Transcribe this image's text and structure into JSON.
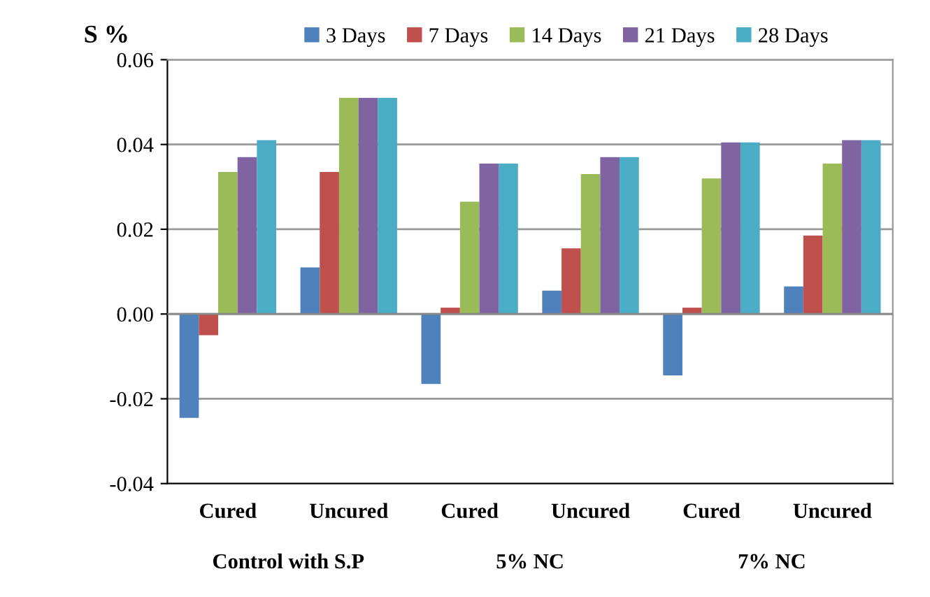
{
  "chart_data": {
    "type": "bar",
    "ylabel": "S %",
    "categories": [
      "Cured",
      "Uncured",
      "Cured",
      "Uncured",
      "Cured",
      "Uncured"
    ],
    "series": [
      {
        "name": "3 Days",
        "color": "#4f81bd",
        "values": [
          -0.0245,
          0.011,
          -0.0165,
          0.0055,
          -0.0145,
          0.0065
        ]
      },
      {
        "name": "7 Days",
        "color": "#c0504d",
        "values": [
          -0.005,
          0.0335,
          0.0015,
          0.0155,
          0.0015,
          0.0185
        ]
      },
      {
        "name": "14 Days",
        "color": "#9bbb59",
        "values": [
          0.0335,
          0.051,
          0.0265,
          0.033,
          0.032,
          0.0355
        ]
      },
      {
        "name": "21 Days",
        "color": "#8064a2",
        "values": [
          0.037,
          0.051,
          0.0355,
          0.037,
          0.0405,
          0.041
        ]
      },
      {
        "name": "28 Days",
        "color": "#4bacc6",
        "values": [
          0.041,
          0.051,
          0.0355,
          0.037,
          0.0405,
          0.041
        ]
      }
    ],
    "ylim": [
      -0.04,
      0.06
    ],
    "yticks": [
      {
        "value": -0.04,
        "label": "-0.04"
      },
      {
        "value": -0.02,
        "label": "-0.02"
      },
      {
        "value": 0,
        "label": "0.00"
      },
      {
        "value": 0.02,
        "label": "0.02"
      },
      {
        "value": 0.04,
        "label": "0.04"
      },
      {
        "value": 0.06,
        "label": "0.06"
      }
    ],
    "grid": "y",
    "legend": "top",
    "annotations": [
      "Control with S.P",
      "5% NC",
      "7% NC"
    ]
  }
}
